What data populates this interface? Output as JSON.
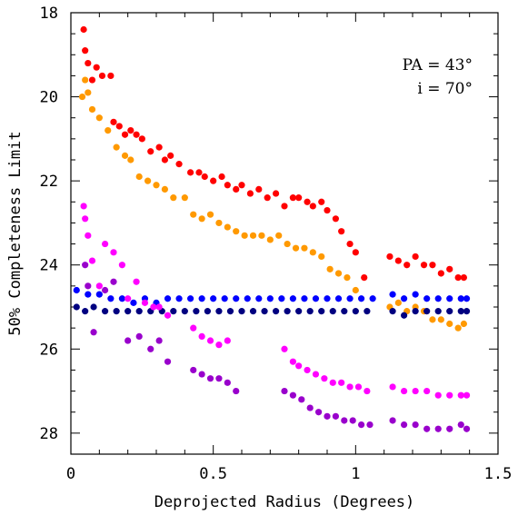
{
  "chart_data": {
    "type": "scatter",
    "title": "",
    "xlabel": "Deprojected Radius (Degrees)",
    "ylabel": "50% Completeness Limit",
    "xlim": [
      0,
      1.5
    ],
    "ylim": [
      28.5,
      18
    ],
    "y_inverted": true,
    "xticks": [
      "0",
      "0.5",
      "1",
      "1.5"
    ],
    "yticks": [
      "18",
      "20",
      "22",
      "24",
      "26",
      "28"
    ],
    "grid": false,
    "legend": "none",
    "annotations": [
      "PA = 43°",
      "i = 70°"
    ],
    "series": [
      {
        "color": "#ff0000",
        "points": [
          [
            0.045,
            18.4
          ],
          [
            0.05,
            18.9
          ],
          [
            0.06,
            19.2
          ],
          [
            0.075,
            19.6
          ],
          [
            0.09,
            19.3
          ],
          [
            0.11,
            19.5
          ],
          [
            0.14,
            19.5
          ],
          [
            0.15,
            20.6
          ],
          [
            0.17,
            20.7
          ],
          [
            0.19,
            20.9
          ],
          [
            0.21,
            20.8
          ],
          [
            0.23,
            20.9
          ],
          [
            0.25,
            21.0
          ],
          [
            0.28,
            21.3
          ],
          [
            0.31,
            21.2
          ],
          [
            0.33,
            21.5
          ],
          [
            0.35,
            21.4
          ],
          [
            0.38,
            21.6
          ],
          [
            0.42,
            21.8
          ],
          [
            0.45,
            21.8
          ],
          [
            0.47,
            21.9
          ],
          [
            0.5,
            22.0
          ],
          [
            0.53,
            21.9
          ],
          [
            0.55,
            22.1
          ],
          [
            0.58,
            22.2
          ],
          [
            0.6,
            22.1
          ],
          [
            0.63,
            22.3
          ],
          [
            0.66,
            22.2
          ],
          [
            0.69,
            22.4
          ],
          [
            0.72,
            22.3
          ],
          [
            0.75,
            22.6
          ],
          [
            0.78,
            22.4
          ],
          [
            0.8,
            22.4
          ],
          [
            0.83,
            22.5
          ],
          [
            0.85,
            22.6
          ],
          [
            0.88,
            22.5
          ],
          [
            0.9,
            22.7
          ],
          [
            0.93,
            22.9
          ],
          [
            0.95,
            23.2
          ],
          [
            0.98,
            23.5
          ],
          [
            1.0,
            23.7
          ],
          [
            1.03,
            24.3
          ],
          [
            1.12,
            23.8
          ],
          [
            1.15,
            23.9
          ],
          [
            1.18,
            24.0
          ],
          [
            1.21,
            23.8
          ],
          [
            1.24,
            24.0
          ],
          [
            1.27,
            24.0
          ],
          [
            1.3,
            24.2
          ],
          [
            1.33,
            24.1
          ],
          [
            1.36,
            24.3
          ],
          [
            1.38,
            24.3
          ]
        ]
      },
      {
        "color": "#ff9900",
        "points": [
          [
            0.04,
            20.0
          ],
          [
            0.05,
            19.6
          ],
          [
            0.06,
            19.9
          ],
          [
            0.075,
            20.3
          ],
          [
            0.1,
            20.5
          ],
          [
            0.13,
            20.8
          ],
          [
            0.16,
            21.2
          ],
          [
            0.19,
            21.4
          ],
          [
            0.21,
            21.5
          ],
          [
            0.24,
            21.9
          ],
          [
            0.27,
            22.0
          ],
          [
            0.3,
            22.1
          ],
          [
            0.33,
            22.2
          ],
          [
            0.36,
            22.4
          ],
          [
            0.4,
            22.4
          ],
          [
            0.43,
            22.8
          ],
          [
            0.46,
            22.9
          ],
          [
            0.49,
            22.8
          ],
          [
            0.52,
            23.0
          ],
          [
            0.55,
            23.1
          ],
          [
            0.58,
            23.2
          ],
          [
            0.61,
            23.3
          ],
          [
            0.64,
            23.3
          ],
          [
            0.67,
            23.3
          ],
          [
            0.7,
            23.4
          ],
          [
            0.73,
            23.3
          ],
          [
            0.76,
            23.5
          ],
          [
            0.79,
            23.6
          ],
          [
            0.82,
            23.6
          ],
          [
            0.85,
            23.7
          ],
          [
            0.88,
            23.8
          ],
          [
            0.91,
            24.1
          ],
          [
            0.94,
            24.2
          ],
          [
            0.97,
            24.3
          ],
          [
            1.0,
            24.6
          ],
          [
            1.12,
            25.0
          ],
          [
            1.15,
            24.9
          ],
          [
            1.18,
            25.1
          ],
          [
            1.21,
            25.0
          ],
          [
            1.24,
            25.1
          ],
          [
            1.27,
            25.3
          ],
          [
            1.3,
            25.3
          ],
          [
            1.33,
            25.4
          ],
          [
            1.36,
            25.5
          ],
          [
            1.38,
            25.4
          ]
        ]
      },
      {
        "color": "#0000ff",
        "points": [
          [
            0.02,
            24.6
          ],
          [
            0.06,
            24.7
          ],
          [
            0.1,
            24.7
          ],
          [
            0.14,
            24.8
          ],
          [
            0.18,
            24.8
          ],
          [
            0.22,
            24.9
          ],
          [
            0.26,
            24.8
          ],
          [
            0.3,
            24.9
          ],
          [
            0.34,
            24.8
          ],
          [
            0.38,
            24.8
          ],
          [
            0.42,
            24.8
          ],
          [
            0.46,
            24.8
          ],
          [
            0.5,
            24.8
          ],
          [
            0.54,
            24.8
          ],
          [
            0.58,
            24.8
          ],
          [
            0.62,
            24.8
          ],
          [
            0.66,
            24.8
          ],
          [
            0.7,
            24.8
          ],
          [
            0.74,
            24.8
          ],
          [
            0.78,
            24.8
          ],
          [
            0.82,
            24.8
          ],
          [
            0.86,
            24.8
          ],
          [
            0.9,
            24.8
          ],
          [
            0.94,
            24.8
          ],
          [
            0.98,
            24.8
          ],
          [
            1.02,
            24.8
          ],
          [
            1.06,
            24.8
          ],
          [
            1.13,
            24.7
          ],
          [
            1.17,
            24.8
          ],
          [
            1.21,
            24.7
          ],
          [
            1.25,
            24.8
          ],
          [
            1.29,
            24.8
          ],
          [
            1.33,
            24.8
          ],
          [
            1.37,
            24.8
          ],
          [
            1.39,
            24.8
          ]
        ]
      },
      {
        "color": "#000080",
        "points": [
          [
            0.02,
            25.0
          ],
          [
            0.05,
            25.1
          ],
          [
            0.08,
            25.0
          ],
          [
            0.12,
            25.1
          ],
          [
            0.16,
            25.1
          ],
          [
            0.2,
            25.1
          ],
          [
            0.24,
            25.1
          ],
          [
            0.28,
            25.1
          ],
          [
            0.32,
            25.1
          ],
          [
            0.36,
            25.1
          ],
          [
            0.4,
            25.1
          ],
          [
            0.44,
            25.1
          ],
          [
            0.48,
            25.1
          ],
          [
            0.52,
            25.1
          ],
          [
            0.56,
            25.1
          ],
          [
            0.6,
            25.1
          ],
          [
            0.64,
            25.1
          ],
          [
            0.68,
            25.1
          ],
          [
            0.72,
            25.1
          ],
          [
            0.76,
            25.1
          ],
          [
            0.8,
            25.1
          ],
          [
            0.84,
            25.1
          ],
          [
            0.88,
            25.1
          ],
          [
            0.92,
            25.1
          ],
          [
            0.96,
            25.1
          ],
          [
            1.0,
            25.1
          ],
          [
            1.04,
            25.1
          ],
          [
            1.13,
            25.1
          ],
          [
            1.17,
            25.2
          ],
          [
            1.21,
            25.1
          ],
          [
            1.25,
            25.1
          ],
          [
            1.29,
            25.1
          ],
          [
            1.33,
            25.1
          ],
          [
            1.37,
            25.1
          ],
          [
            1.39,
            25.1
          ]
        ]
      },
      {
        "color": "#ff00ff",
        "points": [
          [
            0.045,
            22.6
          ],
          [
            0.05,
            22.9
          ],
          [
            0.06,
            23.3
          ],
          [
            0.075,
            23.9
          ],
          [
            0.1,
            24.5
          ],
          [
            0.12,
            23.5
          ],
          [
            0.15,
            23.7
          ],
          [
            0.18,
            24.0
          ],
          [
            0.2,
            24.8
          ],
          [
            0.23,
            24.4
          ],
          [
            0.26,
            24.9
          ],
          [
            0.29,
            25.0
          ],
          [
            0.31,
            25.0
          ],
          [
            0.34,
            25.2
          ],
          [
            0.43,
            25.5
          ],
          [
            0.46,
            25.7
          ],
          [
            0.49,
            25.8
          ],
          [
            0.52,
            25.9
          ],
          [
            0.55,
            25.8
          ],
          [
            0.75,
            26.0
          ],
          [
            0.78,
            26.3
          ],
          [
            0.8,
            26.4
          ],
          [
            0.83,
            26.5
          ],
          [
            0.86,
            26.6
          ],
          [
            0.89,
            26.7
          ],
          [
            0.92,
            26.8
          ],
          [
            0.95,
            26.8
          ],
          [
            0.98,
            26.9
          ],
          [
            1.01,
            26.9
          ],
          [
            1.04,
            27.0
          ],
          [
            1.13,
            26.9
          ],
          [
            1.17,
            27.0
          ],
          [
            1.21,
            27.0
          ],
          [
            1.25,
            27.0
          ],
          [
            1.29,
            27.1
          ],
          [
            1.33,
            27.1
          ],
          [
            1.37,
            27.1
          ],
          [
            1.39,
            27.1
          ]
        ]
      },
      {
        "color": "#9900cc",
        "points": [
          [
            0.05,
            24.0
          ],
          [
            0.06,
            24.5
          ],
          [
            0.08,
            25.6
          ],
          [
            0.12,
            24.6
          ],
          [
            0.15,
            24.4
          ],
          [
            0.2,
            25.8
          ],
          [
            0.24,
            25.7
          ],
          [
            0.28,
            26.0
          ],
          [
            0.31,
            25.8
          ],
          [
            0.34,
            26.3
          ],
          [
            0.43,
            26.5
          ],
          [
            0.46,
            26.6
          ],
          [
            0.49,
            26.7
          ],
          [
            0.52,
            26.7
          ],
          [
            0.55,
            26.8
          ],
          [
            0.58,
            27.0
          ],
          [
            0.75,
            27.0
          ],
          [
            0.78,
            27.1
          ],
          [
            0.81,
            27.2
          ],
          [
            0.84,
            27.4
          ],
          [
            0.87,
            27.5
          ],
          [
            0.9,
            27.6
          ],
          [
            0.93,
            27.6
          ],
          [
            0.96,
            27.7
          ],
          [
            0.99,
            27.7
          ],
          [
            1.02,
            27.8
          ],
          [
            1.05,
            27.8
          ],
          [
            1.13,
            27.7
          ],
          [
            1.17,
            27.8
          ],
          [
            1.21,
            27.8
          ],
          [
            1.25,
            27.9
          ],
          [
            1.29,
            27.9
          ],
          [
            1.33,
            27.9
          ],
          [
            1.37,
            27.8
          ],
          [
            1.39,
            27.9
          ]
        ]
      }
    ]
  }
}
